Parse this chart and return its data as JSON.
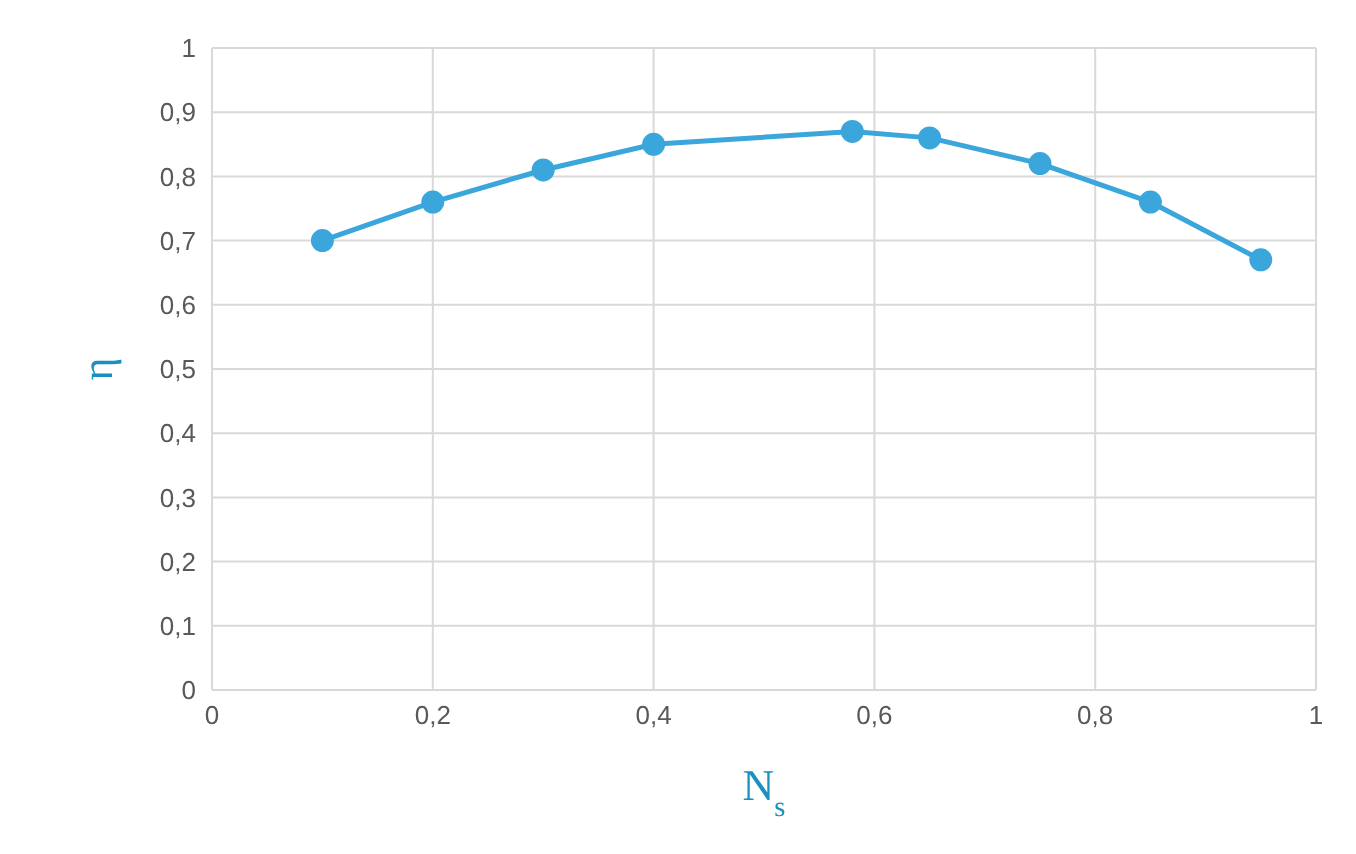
{
  "chart_data": {
    "type": "line",
    "xlabel": "N$_{s}$",
    "ylabel": "η",
    "x": [
      0.1,
      0.2,
      0.3,
      0.4,
      0.58,
      0.65,
      0.75,
      0.85,
      0.95
    ],
    "series": [
      {
        "color": "#3aa6db",
        "values": [
          0.7,
          0.76,
          0.81,
          0.85,
          0.87,
          0.86,
          0.82,
          0.76,
          0.67
        ]
      }
    ],
    "xlim": [
      0,
      1
    ],
    "xticks": [
      0,
      {
        "value": 0.2,
        "label": "0,2"
      },
      {
        "value": 0.4,
        "label": "0,4"
      },
      {
        "value": 0.6,
        "label": "0,6"
      },
      {
        "value": 0.8,
        "label": "0,8"
      },
      1
    ],
    "ylim": [
      0,
      1
    ],
    "yticks": [
      0,
      {
        "value": 0.1,
        "label": "0,1"
      },
      {
        "value": 0.2,
        "label": "0,2"
      },
      {
        "value": 0.3,
        "label": "0,3"
      },
      {
        "value": 0.4,
        "label": "0,4"
      },
      {
        "value": 0.5,
        "label": "0,5"
      },
      {
        "value": 0.6,
        "label": "0,6"
      },
      {
        "value": 0.7,
        "label": "0,7"
      },
      {
        "value": 0.8,
        "label": "0,8"
      },
      {
        "value": 0.9,
        "label": "0,9"
      },
      1
    ],
    "grid": true,
    "marker": "circle",
    "line_style": "solid",
    "legend": false
  }
}
